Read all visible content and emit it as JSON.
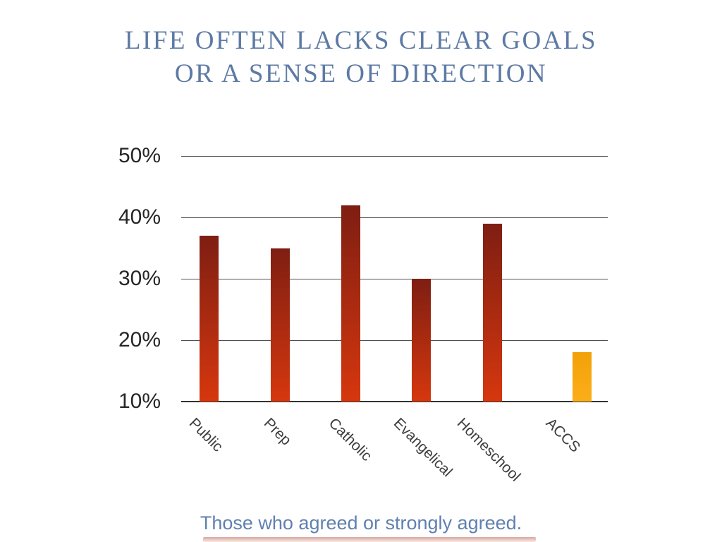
{
  "slide": {
    "title_line1": "LIFE OFTEN LACKS CLEAR GOALS",
    "title_line2": "OR A SENSE OF DIRECTION",
    "caption": "Those who agreed or strongly agreed."
  },
  "colors": {
    "title_text": "#5d7aa4",
    "caption_text": "#6080b0",
    "bar_gradient_top": "#7e1e12",
    "bar_gradient_bottom": "#d6370e",
    "highlight_bar_top": "#f2a107",
    "highlight_bar_bottom": "#fcae1a",
    "gridline": "#4f4f4f",
    "axis_line": "#333333",
    "tick_text": "#262626"
  },
  "chart_data": {
    "type": "bar",
    "title": "LIFE OFTEN LACKS CLEAR GOALS OR A SENSE OF DIRECTION",
    "caption": "Those who agreed or strongly agreed.",
    "categories": [
      "Public",
      "Prep",
      "Catholic",
      "Evangelical",
      "Homeschool",
      "ACCS"
    ],
    "values": [
      37,
      35,
      42,
      30,
      39,
      18
    ],
    "unit": "%",
    "y_ticks": [
      "50%",
      "40%",
      "30%",
      "20%",
      "10%"
    ],
    "y_tick_values": [
      50,
      40,
      30,
      20,
      10
    ],
    "ylim": [
      10,
      50
    ],
    "grid": true,
    "legend": false,
    "highlight_category": "ACCS",
    "xlabel": "",
    "ylabel": ""
  }
}
